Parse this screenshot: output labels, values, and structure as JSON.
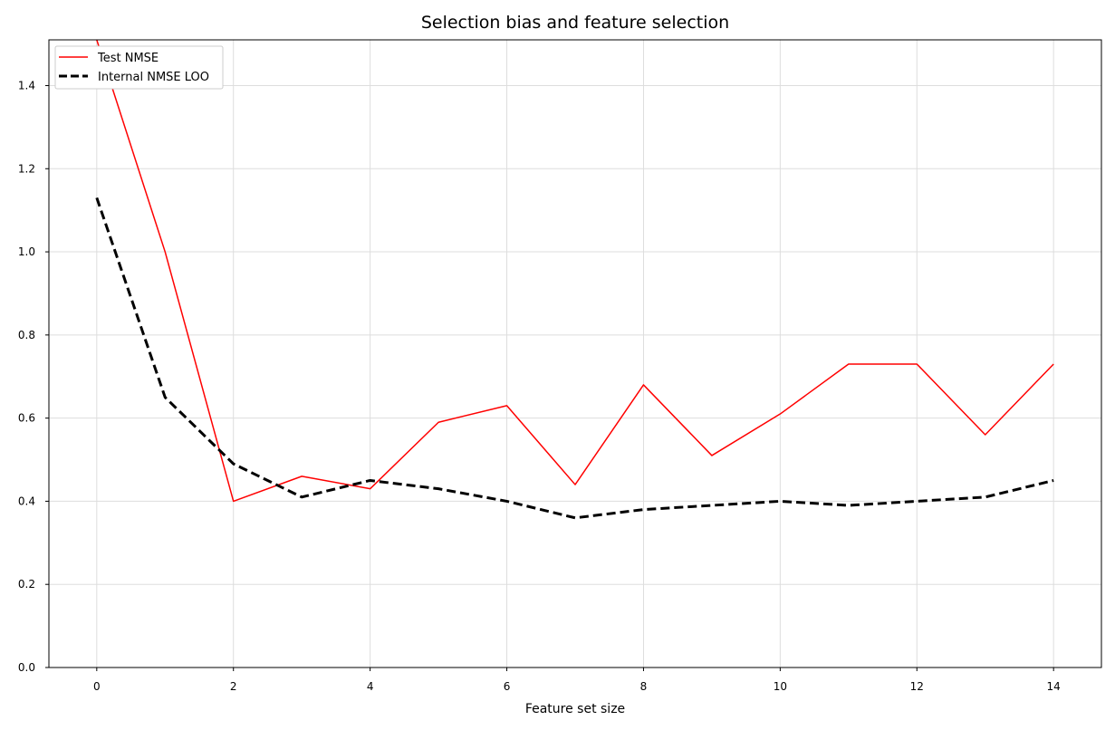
{
  "chart_data": {
    "type": "line",
    "title": "Selection bias and feature selection",
    "xlabel": "Feature set size",
    "ylabel": "",
    "xlim": [
      -0.7,
      14.7
    ],
    "ylim": [
      0.0,
      1.51
    ],
    "xticks": [
      0,
      2,
      4,
      6,
      8,
      10,
      12,
      14
    ],
    "yticks": [
      0.0,
      0.2,
      0.4,
      0.6,
      0.8,
      1.0,
      1.2,
      1.4
    ],
    "xtick_labels": [
      "0",
      "2",
      "4",
      "6",
      "8",
      "10",
      "12",
      "14"
    ],
    "ytick_labels": [
      "0.0",
      "0.2",
      "0.4",
      "0.6",
      "0.8",
      "1.0",
      "1.2",
      "1.4"
    ],
    "grid": true,
    "legend_position": "top-left",
    "x": [
      0,
      1,
      2,
      3,
      4,
      5,
      6,
      7,
      8,
      9,
      10,
      11,
      12,
      13,
      14
    ],
    "series": [
      {
        "name": "Test NMSE",
        "color": "#ff0000",
        "style": "solid",
        "values": [
          1.51,
          1.0,
          0.4,
          0.46,
          0.43,
          0.59,
          0.63,
          0.44,
          0.68,
          0.51,
          0.61,
          0.73,
          0.73,
          0.56,
          0.73
        ]
      },
      {
        "name": "Internal NMSE LOO",
        "color": "#000000",
        "style": "dashed",
        "values": [
          1.13,
          0.65,
          0.49,
          0.41,
          0.45,
          0.43,
          0.4,
          0.36,
          0.38,
          0.39,
          0.4,
          0.39,
          0.4,
          0.41,
          0.45
        ]
      }
    ]
  }
}
